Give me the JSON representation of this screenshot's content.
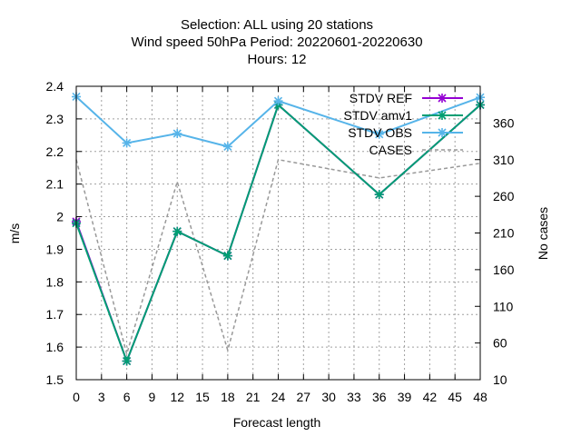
{
  "chart_data": {
    "type": "line",
    "title_lines": [
      "Selection: ALL using     20 stations",
      "Wind speed 50hPa   Period: 20220601-20220630",
      "Hours:  12"
    ],
    "xlabel": "Forecast length",
    "ylabel": "m/s",
    "y2label": "No cases",
    "xlim": [
      0,
      48
    ],
    "ylim": [
      1.5,
      2.4
    ],
    "y2lim": [
      10,
      410
    ],
    "x_ticks": [
      0,
      3,
      6,
      9,
      12,
      15,
      18,
      21,
      24,
      27,
      30,
      33,
      36,
      39,
      42,
      45,
      48
    ],
    "y_ticks": [
      1.5,
      1.6,
      1.7,
      1.8,
      1.9,
      2,
      2.1,
      2.2,
      2.3,
      2.4
    ],
    "y_tick_labels": [
      "1.5",
      "1.6",
      "1.7",
      "1.8",
      "1.9",
      "2",
      "2.1",
      "2.2",
      "2.3",
      "2.4"
    ],
    "y2_ticks": [
      10,
      60,
      110,
      160,
      210,
      260,
      310,
      360
    ],
    "grid": true,
    "legend_position": "top-right",
    "x": [
      0,
      6,
      12,
      18,
      24,
      36,
      48
    ],
    "series": [
      {
        "name": "STDV REF",
        "axis": "y",
        "color": "#9400d3",
        "marker": "x",
        "values": [
          1.985,
          1.557,
          1.955,
          1.88,
          2.343,
          2.068,
          2.343
        ]
      },
      {
        "name": "STDV amv1",
        "axis": "y",
        "color": "#009e73",
        "marker": "x",
        "values": [
          1.98,
          1.557,
          1.955,
          1.88,
          2.343,
          2.068,
          2.343
        ]
      },
      {
        "name": "STDV OBS",
        "axis": "y",
        "color": "#56b4e9",
        "marker": "x",
        "values": [
          2.368,
          2.226,
          2.255,
          2.215,
          2.355,
          2.253,
          2.366
        ]
      },
      {
        "name": "CASES",
        "axis": "y2",
        "color": "#999999",
        "dash": true,
        "values": [
          310,
          45,
          280,
          50,
          310,
          285,
          305
        ]
      }
    ]
  }
}
